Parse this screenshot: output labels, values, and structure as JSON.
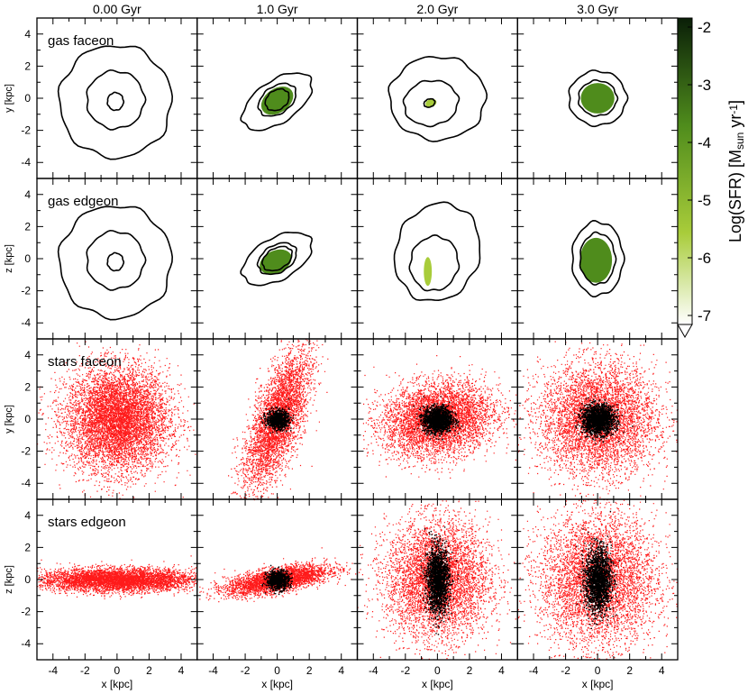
{
  "chart_data": {
    "type": "image-grid",
    "columns": [
      "0.00 Gyr",
      "1.0 Gyr",
      "2.0 Gyr",
      "3.0 Gyr"
    ],
    "rows": [
      {
        "label": "gas faceon",
        "ylabel": "y [kpc]"
      },
      {
        "label": "gas edgeon",
        "ylabel": "z [kpc]"
      },
      {
        "label": "stars faceon",
        "ylabel": "y [kpc]"
      },
      {
        "label": "stars edgeon",
        "ylabel": "z [kpc]"
      }
    ],
    "xlabel": "x [kpc]",
    "xlim": [
      -5,
      5
    ],
    "ylim": [
      -5,
      5
    ],
    "xticks": [
      "-4",
      "-2",
      "0",
      "2",
      "4"
    ],
    "yticks": [
      "-4",
      "-2",
      "0",
      "2",
      "4"
    ],
    "colorbar": {
      "label_main": "Log(SFR) [M",
      "label_sub": "sun",
      "label_unit": " yr",
      "label_sup": "-1",
      "label_end": "]",
      "range": [
        -7,
        -2
      ],
      "ticks": [
        "-2",
        "-3",
        "-4",
        "-5",
        "-6",
        "-7"
      ],
      "color_high": "#0a1f08",
      "color_mid": "#4f8c1c",
      "color_low_mid": "#a8cc3a",
      "color_low": "#ffffff"
    },
    "gas_panels": [
      {
        "row": 0,
        "col": 0,
        "contours": [
          [
            -0.1,
            -0.2,
            3.5,
            3.5,
            0
          ],
          [
            -0.1,
            -0.1,
            1.8,
            1.8,
            0
          ],
          [
            -0.1,
            -0.2,
            0.5,
            0.55,
            0
          ]
        ],
        "sfr": []
      },
      {
        "row": 0,
        "col": 1,
        "contours": [
          [
            0,
            -0.2,
            2.5,
            1.3,
            35
          ],
          [
            0,
            -0.1,
            1.3,
            0.85,
            35
          ],
          [
            0,
            -0.1,
            0.8,
            0.6,
            35
          ]
        ],
        "sfr": [
          {
            "x": 0,
            "y": -0.15,
            "rx": 1.1,
            "ry": 0.75,
            "rot": 35,
            "logsfr": -4.3
          }
        ]
      },
      {
        "row": 0,
        "col": 2,
        "contours": [
          [
            0,
            0,
            3,
            2.6,
            0
          ],
          [
            -0.4,
            -0.3,
            1.7,
            1.4,
            10
          ],
          [
            -0.5,
            -0.3,
            0.35,
            0.25,
            20
          ]
        ],
        "sfr": [
          {
            "x": -0.4,
            "y": -0.3,
            "rx": 0.35,
            "ry": 0.25,
            "rot": 20,
            "logsfr": -4.8
          }
        ]
      },
      {
        "row": 0,
        "col": 3,
        "contours": [
          [
            0,
            0,
            1.8,
            1.7,
            0
          ],
          [
            0,
            0,
            1.2,
            1.1,
            0
          ]
        ],
        "sfr": [
          {
            "x": 0,
            "y": 0,
            "rx": 1.05,
            "ry": 0.95,
            "rot": 0,
            "logsfr": -4.0
          }
        ]
      },
      {
        "row": 1,
        "col": 0,
        "contours": [
          [
            -0.1,
            -0.2,
            3.5,
            3.5,
            0
          ],
          [
            -0.1,
            -0.1,
            1.8,
            1.8,
            0
          ],
          [
            -0.1,
            -0.2,
            0.5,
            0.55,
            0
          ]
        ],
        "sfr": []
      },
      {
        "row": 1,
        "col": 1,
        "contours": [
          [
            0,
            0,
            2.4,
            1.3,
            30
          ],
          [
            0,
            0,
            1.3,
            0.85,
            30
          ],
          [
            0,
            0,
            1.0,
            0.65,
            30
          ]
        ],
        "sfr": [
          {
            "x": -0.1,
            "y": -0.2,
            "rx": 1.05,
            "ry": 0.7,
            "rot": 25,
            "logsfr": -4.2
          }
        ]
      },
      {
        "row": 1,
        "col": 2,
        "contours": [
          [
            0,
            0.4,
            2.6,
            3.1,
            -20
          ],
          [
            -0.2,
            -0.3,
            1.5,
            1.7,
            -10
          ]
        ],
        "sfr": [
          {
            "x": -0.6,
            "y": -0.8,
            "rx": 0.25,
            "ry": 0.9,
            "rot": 0,
            "logsfr": -5.6
          }
        ]
      },
      {
        "row": 1,
        "col": 3,
        "contours": [
          [
            0,
            0,
            1.6,
            2.3,
            0
          ],
          [
            0,
            0,
            1.1,
            1.6,
            0
          ]
        ],
        "sfr": [
          {
            "x": -0.1,
            "y": -0.1,
            "rx": 1.0,
            "ry": 1.4,
            "rot": 0,
            "logsfr": -3.9
          }
        ]
      }
    ],
    "star_panels": [
      {
        "row": 2,
        "col": 0,
        "sx": 1.6,
        "sy": 1.6,
        "rot": 0,
        "core": 0,
        "cx": 1.0,
        "cy": 1.0,
        "n": 7000
      },
      {
        "row": 2,
        "col": 1,
        "sx": 0.7,
        "sy": 2.2,
        "rot": -20,
        "core": 200,
        "cx": 0.35,
        "cy": 0.3,
        "n": 4000
      },
      {
        "row": 2,
        "col": 2,
        "sx": 1.7,
        "sy": 1.1,
        "rot": 10,
        "core": 400,
        "cx": 0.45,
        "cy": 0.4,
        "n": 5000
      },
      {
        "row": 2,
        "col": 3,
        "sx": 1.8,
        "sy": 1.7,
        "rot": 0,
        "core": 450,
        "cx": 0.5,
        "cy": 0.45,
        "n": 5000
      },
      {
        "row": 3,
        "col": 0,
        "sx": 2.4,
        "sy": 0.35,
        "rot": 0,
        "core": 0,
        "cx": 1.0,
        "cy": 1.0,
        "n": 6000
      },
      {
        "row": 3,
        "col": 1,
        "sx": 1.6,
        "sy": 0.35,
        "rot": 10,
        "core": 200,
        "cx": 0.35,
        "cy": 0.3,
        "n": 3500
      },
      {
        "row": 3,
        "col": 2,
        "sx": 1.6,
        "sy": 1.8,
        "rot": 0,
        "core": 450,
        "cx": 0.35,
        "cy": 1.0,
        "n": 5000
      },
      {
        "row": 3,
        "col": 3,
        "sx": 1.8,
        "sy": 2.0,
        "rot": 0,
        "core": 450,
        "cx": 0.4,
        "cy": 1.0,
        "n": 5000
      }
    ],
    "star_colors": {
      "halo": "#ff1a1a",
      "core": "#000000"
    },
    "grid": false
  }
}
